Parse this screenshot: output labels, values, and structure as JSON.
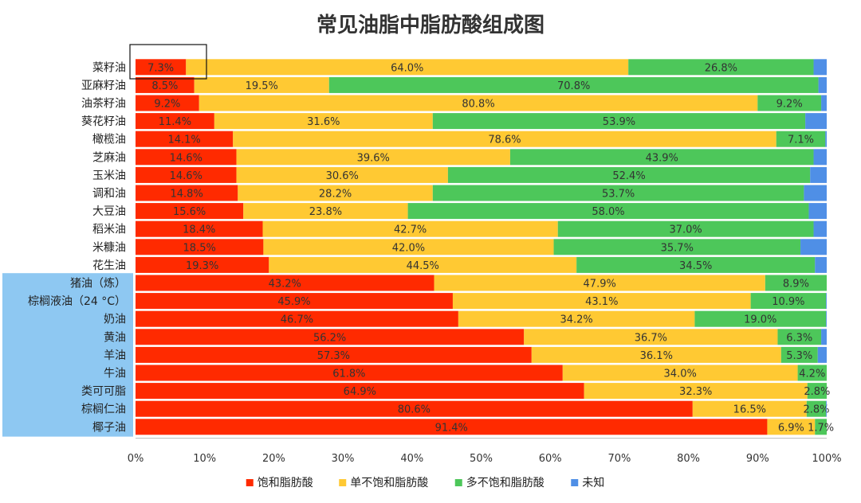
{
  "chart_data": {
    "type": "bar",
    "orientation": "horizontal",
    "stacked": true,
    "title": "常见油脂中脂肪酸组成图",
    "xlabel": "",
    "ylabel": "",
    "xlim": [
      0,
      100
    ],
    "x_ticks": [
      "0%",
      "10%",
      "20%",
      "30%",
      "40%",
      "50%",
      "60%",
      "70%",
      "80%",
      "90%",
      "100%"
    ],
    "legend_position": "bottom",
    "highlight_group": "animal-and-saturated-fats",
    "highlight_color": "#8ec8f2",
    "categories": [
      "菜籽油",
      "亚麻籽油",
      "油茶籽油",
      "葵花籽油",
      "橄榄油",
      "芝麻油",
      "玉米油",
      "调和油",
      "大豆油",
      "稻米油",
      "米糠油",
      "花生油",
      "猪油（炼）",
      "棕榈液油（24 °C）",
      "奶油",
      "黄油",
      "羊油",
      "牛油",
      "类可可脂",
      "棕榈仁油",
      "椰子油"
    ],
    "highlighted": [
      false,
      false,
      false,
      false,
      false,
      false,
      false,
      false,
      false,
      false,
      false,
      false,
      true,
      true,
      true,
      true,
      true,
      true,
      true,
      true,
      true
    ],
    "series": [
      {
        "name": "饱和脂肪酸",
        "color": "#ff2a00",
        "values": [
          7.3,
          8.5,
          9.2,
          11.4,
          14.1,
          14.6,
          14.6,
          14.8,
          15.6,
          18.4,
          18.5,
          19.3,
          43.2,
          45.9,
          46.7,
          56.2,
          57.3,
          61.8,
          64.9,
          80.6,
          91.4
        ],
        "labels": [
          "7.3%",
          "8.5%",
          "9.2%",
          "11.4%",
          "14.1%",
          "14.6%",
          "14.6%",
          "14.8%",
          "15.6%",
          "18.4%",
          "18.5%",
          "19.3%",
          "43.2%",
          "45.9%",
          "46.7%",
          "56.2%",
          "57.3%",
          "61.8%",
          "64.9%",
          "80.6%",
          "91.4%"
        ]
      },
      {
        "name": "单不饱和脂肪酸",
        "color": "#ffc933",
        "values": [
          64.0,
          19.5,
          80.8,
          31.6,
          78.6,
          39.6,
          30.6,
          28.2,
          23.8,
          42.7,
          42.0,
          44.5,
          47.9,
          43.1,
          34.2,
          36.7,
          36.1,
          34.0,
          32.3,
          16.5,
          6.9
        ],
        "labels": [
          "64.0%",
          "19.5%",
          "80.8%",
          "31.6%",
          "78.6%",
          "39.6%",
          "30.6%",
          "28.2%",
          "23.8%",
          "42.7%",
          "42.0%",
          "44.5%",
          "47.9%",
          "43.1%",
          "34.2%",
          "36.7%",
          "36.1%",
          "34.0%",
          "32.3%",
          "16.5%",
          "6.9%"
        ]
      },
      {
        "name": "多不饱和脂肪酸",
        "color": "#4dc75a",
        "values": [
          26.8,
          70.8,
          9.2,
          53.9,
          7.1,
          43.9,
          52.4,
          53.7,
          58.0,
          37.0,
          35.7,
          34.5,
          8.9,
          10.9,
          19.0,
          6.3,
          5.3,
          4.2,
          2.8,
          2.8,
          1.7
        ],
        "labels": [
          "26.8%",
          "70.8%",
          "9.2%",
          "53.9%",
          "7.1%",
          "43.9%",
          "52.4%",
          "53.7%",
          "58.0%",
          "37.0%",
          "35.7%",
          "34.5%",
          "8.9%",
          "10.9%",
          "19.0%",
          "6.3%",
          "5.3%",
          "4.2%",
          "2.8%",
          "2.8%",
          "1.7%"
        ]
      },
      {
        "name": "未知",
        "color": "#4f8fe6",
        "values": [
          1.9,
          1.2,
          0.8,
          3.1,
          0.2,
          1.9,
          2.4,
          3.3,
          2.6,
          1.9,
          3.8,
          1.7,
          0.0,
          0.1,
          0.1,
          0.8,
          1.3,
          0.0,
          0.0,
          0.1,
          0.0
        ],
        "labels": [
          "",
          "",
          "",
          "",
          "",
          "",
          "",
          "",
          "",
          "",
          "",
          "",
          "",
          "",
          "",
          "",
          "",
          "",
          "",
          "",
          ""
        ]
      }
    ]
  }
}
